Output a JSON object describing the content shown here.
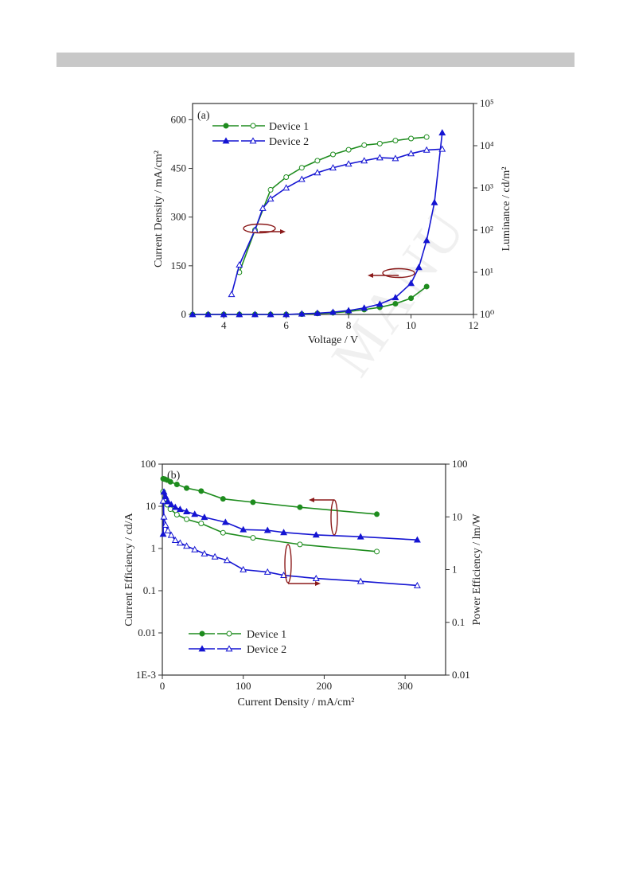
{
  "header": {
    "bar": ""
  },
  "watermark": "MANU",
  "chart_data": [
    {
      "type": "line",
      "panel": "(a)",
      "xlabel": "Voltage / V",
      "ylabel": "Current Density / mA/cm²",
      "y2label": "Luminance / cd/m²",
      "xlim": [
        3,
        12
      ],
      "ylim": [
        0,
        650
      ],
      "y2lim_log": [
        0,
        5
      ],
      "x_ticks": [
        "4",
        "6",
        "8",
        "10",
        "12"
      ],
      "y_ticks": [
        "0",
        "150",
        "300",
        "450",
        "600"
      ],
      "y2_ticks": [
        "10⁰",
        "10¹",
        "10²",
        "10³",
        "10⁴",
        "10⁵"
      ],
      "legend": [
        "Device 1",
        "Device 2"
      ],
      "colors": {
        "Device 1": "#1e8c1e",
        "Device 2": "#1414d2",
        "annotation": "#8b1a1a"
      },
      "series": [
        {
          "name": "Device 1",
          "quantity": "current_density",
          "axis": "left",
          "marker": "filled-circle",
          "x": [
            3.0,
            3.5,
            4.0,
            4.5,
            5.0,
            5.5,
            6.0,
            6.5,
            7.0,
            7.5,
            8.0,
            8.5,
            9.0,
            9.5,
            10.0,
            10.5
          ],
          "y": [
            0,
            0,
            0,
            0,
            0,
            0,
            0,
            1,
            3,
            5,
            9,
            15,
            22,
            33,
            50,
            86
          ]
        },
        {
          "name": "Device 1",
          "quantity": "luminance",
          "axis": "right",
          "marker": "open-circle",
          "x": [
            4.5,
            5.0,
            5.5,
            6.0,
            6.5,
            7.0,
            7.5,
            8.0,
            8.5,
            9.0,
            9.5,
            10.0,
            10.5
          ],
          "y": [
            10,
            100,
            900,
            1800,
            3000,
            4400,
            6200,
            8000,
            10300,
            11200,
            13200,
            14800,
            16000
          ]
        },
        {
          "name": "Device 2",
          "quantity": "current_density",
          "axis": "left",
          "marker": "filled-triangle",
          "x": [
            3.0,
            3.5,
            4.0,
            4.5,
            5.0,
            5.5,
            6.0,
            6.5,
            7.0,
            7.5,
            8.0,
            8.5,
            9.0,
            9.5,
            10.0,
            10.25,
            10.5,
            10.75,
            11.0
          ],
          "y": [
            0,
            0,
            0,
            0,
            0,
            0,
            0,
            2,
            4,
            7,
            12,
            20,
            32,
            52,
            96,
            145,
            228,
            345,
            560
          ]
        },
        {
          "name": "Device 2",
          "quantity": "luminance",
          "axis": "right",
          "marker": "open-triangle",
          "x": [
            4.25,
            4.5,
            5.0,
            5.25,
            5.5,
            6.0,
            6.5,
            7.0,
            7.5,
            8.0,
            8.5,
            9.0,
            9.5,
            10.0,
            10.5,
            11.0
          ],
          "y": [
            3,
            15,
            100,
            330,
            550,
            1000,
            1600,
            2300,
            3000,
            3700,
            4400,
            5200,
            5000,
            6500,
            7900,
            8300
          ]
        }
      ]
    },
    {
      "type": "line",
      "panel": "(b)",
      "xlabel": "Current Density / mA/cm²",
      "ylabel": "Current Efficiency / cd/A",
      "y2label": "Power Efficiency / lm/W",
      "xlim": [
        0,
        350
      ],
      "ylim_log": [
        -3,
        2
      ],
      "y2lim_log": [
        -2,
        2
      ],
      "x_ticks": [
        "0",
        "100",
        "200",
        "300"
      ],
      "y_ticks": [
        "1E-3",
        "0.01",
        "0.1",
        "1",
        "10",
        "100"
      ],
      "y2_ticks": [
        "0.01",
        "0.1",
        "1",
        "10",
        "100"
      ],
      "legend": [
        "Device 1",
        "Device 2"
      ],
      "colors": {
        "Device 1": "#1e8c1e",
        "Device 2": "#1414d2",
        "annotation": "#8b1a1a"
      },
      "series": [
        {
          "name": "Device 1",
          "quantity": "current_efficiency",
          "axis": "left",
          "marker": "filled-circle",
          "x": [
            1,
            3,
            6,
            10,
            18,
            30,
            48,
            75,
            112,
            170,
            265
          ],
          "y": [
            45,
            44,
            42,
            38,
            33,
            27,
            23,
            15,
            12.5,
            9.5,
            6.5
          ]
        },
        {
          "name": "Device 1",
          "quantity": "power_efficiency",
          "axis": "right",
          "marker": "open-circle",
          "x": [
            1,
            3,
            6,
            10,
            18,
            30,
            48,
            75,
            112,
            170,
            265
          ],
          "y": [
            30,
            22,
            17,
            14,
            11,
            9,
            7.5,
            5,
            4,
            3,
            2.2
          ]
        },
        {
          "name": "Device 2",
          "quantity": "current_efficiency",
          "axis": "left",
          "marker": "filled-triangle",
          "x": [
            1,
            2,
            4,
            7,
            11,
            16,
            22,
            30,
            40,
            52,
            78,
            100,
            130,
            150,
            190,
            245,
            315
          ],
          "y": [
            2.2,
            22,
            17,
            13,
            11,
            9.5,
            8.5,
            7.5,
            6.5,
            5.5,
            4.2,
            2.8,
            2.7,
            2.4,
            2.1,
            1.9,
            1.6
          ]
        },
        {
          "name": "Device 2",
          "quantity": "power_efficiency",
          "axis": "right",
          "marker": "open-triangle",
          "x": [
            1,
            2,
            4,
            7,
            11,
            16,
            22,
            30,
            40,
            52,
            65,
            80,
            100,
            130,
            150,
            190,
            245,
            315
          ],
          "y": [
            20,
            10,
            7,
            5.5,
            4.5,
            3.6,
            3.2,
            2.8,
            2.4,
            2.0,
            1.75,
            1.5,
            1.0,
            0.9,
            0.78,
            0.68,
            0.6,
            0.5
          ]
        }
      ]
    }
  ]
}
